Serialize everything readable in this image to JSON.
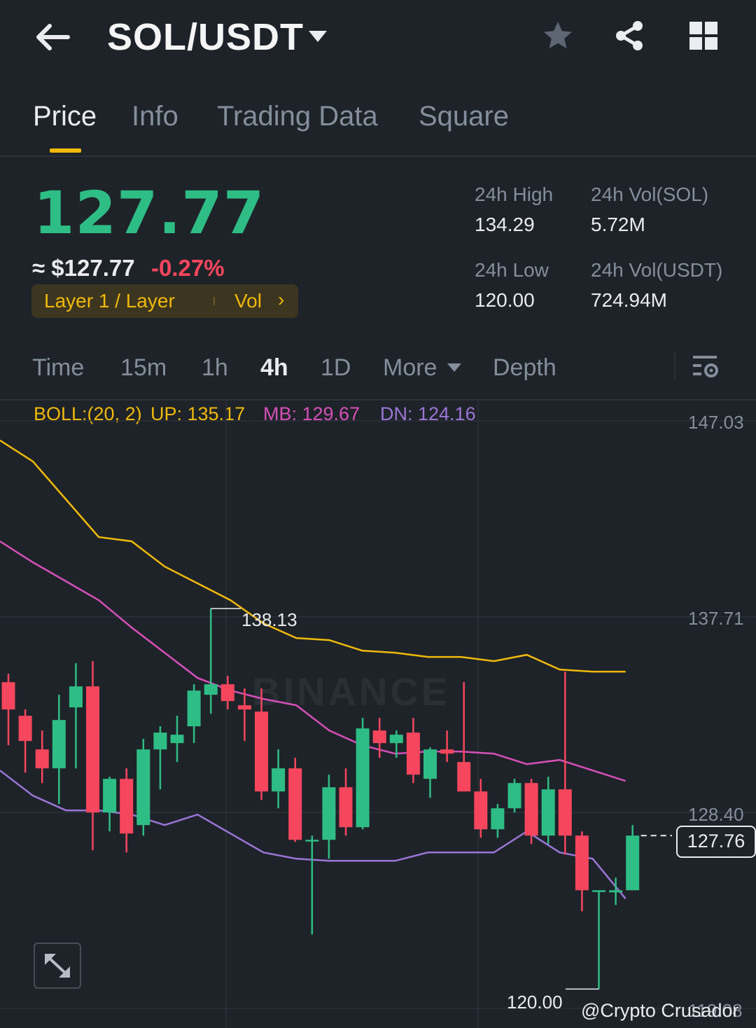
{
  "header": {
    "pair": "SOL/USDT",
    "icons": [
      "back-arrow-icon",
      "dropdown-caret-icon",
      "star-icon",
      "share-icon",
      "grid-icon"
    ]
  },
  "tabs": [
    {
      "label": "Price",
      "active": true
    },
    {
      "label": "Info",
      "active": false
    },
    {
      "label": "Trading Data",
      "active": false
    },
    {
      "label": "Square",
      "active": false
    }
  ],
  "ticker": {
    "last_price": "127.77",
    "usd_price": "≈ $127.77",
    "change_pct": "-0.27%",
    "tag": "Layer 1 / Layer",
    "tag_vol": "Vol",
    "high_label": "24h High",
    "high_value": "134.29",
    "low_label": "24h Low",
    "low_value": "120.00",
    "vol_sol_label": "24h Vol(SOL)",
    "vol_sol_value": "5.72M",
    "vol_usdt_label": "24h Vol(USDT)",
    "vol_usdt_value": "724.94M"
  },
  "intervals": [
    {
      "label": "Time",
      "active": false
    },
    {
      "label": "15m",
      "active": false
    },
    {
      "label": "1h",
      "active": false
    },
    {
      "label": "4h",
      "active": true
    },
    {
      "label": "1D",
      "active": false
    },
    {
      "label": "More",
      "active": false
    },
    {
      "label": "Depth",
      "active": false
    }
  ],
  "indicator": {
    "name": "BOLL:(20, 2)",
    "up": "UP: 135.17",
    "mb": "MB: 129.67",
    "dn": "DN: 124.16"
  },
  "colors": {
    "up": "#2ebd85",
    "down": "#f6465d",
    "boll_up": "#f0b90b",
    "boll_mb": "#d64fb8",
    "boll_dn": "#9b75d6"
  },
  "chart_data": {
    "type": "candlestick",
    "y_axis_labels": [
      "147.03",
      "137.71",
      "128.40",
      "119.08"
    ],
    "ylim": [
      119.08,
      147.03
    ],
    "current_price": "127.76",
    "max_label": "138.13",
    "min_label": "120.00",
    "candles": [
      {
        "o": 134.6,
        "h": 135.0,
        "l": 131.6,
        "c": 133.3
      },
      {
        "o": 133.0,
        "h": 133.3,
        "l": 130.3,
        "c": 131.8
      },
      {
        "o": 131.4,
        "h": 132.3,
        "l": 129.8,
        "c": 130.5
      },
      {
        "o": 130.5,
        "h": 134.0,
        "l": 128.8,
        "c": 132.8
      },
      {
        "o": 133.4,
        "h": 135.5,
        "l": 130.5,
        "c": 134.4
      },
      {
        "o": 134.4,
        "h": 135.6,
        "l": 126.6,
        "c": 128.4
      },
      {
        "o": 128.4,
        "h": 130.1,
        "l": 127.5,
        "c": 130.0
      },
      {
        "o": 130.0,
        "h": 130.5,
        "l": 126.5,
        "c": 127.4
      },
      {
        "o": 127.8,
        "h": 131.9,
        "l": 127.3,
        "c": 131.4
      },
      {
        "o": 131.4,
        "h": 132.5,
        "l": 129.5,
        "c": 132.2
      },
      {
        "o": 131.7,
        "h": 133.0,
        "l": 130.8,
        "c": 132.1
      },
      {
        "o": 132.5,
        "h": 134.5,
        "l": 131.7,
        "c": 134.2
      },
      {
        "o": 134.0,
        "h": 138.1,
        "l": 133.1,
        "c": 134.5
      },
      {
        "o": 134.5,
        "h": 134.9,
        "l": 133.3,
        "c": 133.7
      },
      {
        "o": 133.5,
        "h": 134.3,
        "l": 131.8,
        "c": 133.3
      },
      {
        "o": 133.2,
        "h": 134.3,
        "l": 129.0,
        "c": 129.4
      },
      {
        "o": 129.4,
        "h": 131.4,
        "l": 128.6,
        "c": 130.5
      },
      {
        "o": 130.5,
        "h": 131.0,
        "l": 127.0,
        "c": 127.1
      },
      {
        "o": 127.1,
        "h": 127.3,
        "l": 122.6,
        "c": 127.1
      },
      {
        "o": 127.1,
        "h": 130.2,
        "l": 126.2,
        "c": 129.6
      },
      {
        "o": 129.6,
        "h": 130.5,
        "l": 127.3,
        "c": 127.7
      },
      {
        "o": 127.7,
        "h": 132.9,
        "l": 127.6,
        "c": 132.4
      },
      {
        "o": 132.3,
        "h": 132.9,
        "l": 131.0,
        "c": 131.7
      },
      {
        "o": 131.7,
        "h": 132.3,
        "l": 131.0,
        "c": 132.1
      },
      {
        "o": 132.2,
        "h": 132.9,
        "l": 129.8,
        "c": 130.2
      },
      {
        "o": 130.0,
        "h": 131.5,
        "l": 129.1,
        "c": 131.4
      },
      {
        "o": 131.4,
        "h": 132.3,
        "l": 130.8,
        "c": 131.2
      },
      {
        "o": 130.8,
        "h": 134.6,
        "l": 129.5,
        "c": 129.4
      },
      {
        "o": 129.4,
        "h": 130.0,
        "l": 127.2,
        "c": 127.6
      },
      {
        "o": 127.6,
        "h": 128.8,
        "l": 127.2,
        "c": 128.6
      },
      {
        "o": 128.6,
        "h": 130.0,
        "l": 128.4,
        "c": 129.8
      },
      {
        "o": 129.8,
        "h": 130.0,
        "l": 126.9,
        "c": 127.3
      },
      {
        "o": 127.3,
        "h": 130.1,
        "l": 126.9,
        "c": 129.5
      },
      {
        "o": 129.5,
        "h": 135.1,
        "l": 126.4,
        "c": 127.3
      },
      {
        "o": 127.3,
        "h": 127.5,
        "l": 123.7,
        "c": 124.7
      },
      {
        "o": 124.7,
        "h": 124.7,
        "l": 120.0,
        "c": 124.7
      },
      {
        "o": 124.6,
        "h": 125.3,
        "l": 124.0,
        "c": 124.7
      },
      {
        "o": 124.7,
        "h": 127.8,
        "l": 124.7,
        "c": 127.3
      }
    ],
    "boll_up": [
      146.1,
      145.1,
      143.3,
      141.5,
      141.3,
      140.1,
      139.3,
      138.5,
      137.4,
      136.7,
      136.6,
      136.1,
      136.0,
      135.8,
      135.8,
      135.6,
      135.9,
      135.2,
      135.1,
      135.1
    ],
    "boll_mb": [
      141.3,
      140.3,
      139.4,
      138.5,
      137.2,
      136.0,
      134.8,
      134.2,
      133.8,
      133.5,
      132.3,
      131.6,
      131.2,
      131.3,
      131.3,
      131.2,
      130.7,
      130.9,
      130.4,
      129.9
    ],
    "boll_dn": [
      130.4,
      129.2,
      128.5,
      128.5,
      128.3,
      127.8,
      128.3,
      127.4,
      126.5,
      126.2,
      126.1,
      126.1,
      126.1,
      126.5,
      126.5,
      126.5,
      127.5,
      126.5,
      126.2,
      124.3
    ]
  },
  "watermark": "BINANCE",
  "credit": "@Crypto Crusador"
}
